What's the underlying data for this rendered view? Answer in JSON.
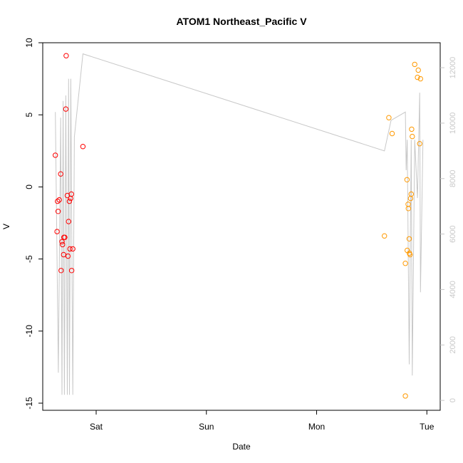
{
  "chart_data": {
    "type": "scatter",
    "title": "ATOM1 Northeast_Pacific V",
    "xlabel": "Date",
    "ylabel": "V",
    "ylim": [
      -15,
      10
    ],
    "xlim": [
      -0.42,
      3.05
    ],
    "x_ticks": [
      {
        "value": 0,
        "label": "Sat"
      },
      {
        "value": 1,
        "label": "Sun"
      },
      {
        "value": 2,
        "label": "Mon"
      },
      {
        "value": 3,
        "label": "Tue"
      }
    ],
    "y_ticks": [
      {
        "value": 10,
        "label": "10"
      },
      {
        "value": 5,
        "label": "5"
      },
      {
        "value": 0,
        "label": "0"
      },
      {
        "value": -5,
        "label": "-5"
      },
      {
        "value": -10,
        "label": "-10"
      },
      {
        "value": -15,
        "label": "-15"
      }
    ],
    "y2lim": [
      -100,
      12900
    ],
    "y2_ticks": [
      {
        "value": 0,
        "label": "0"
      },
      {
        "value": 2000,
        "label": "2000"
      },
      {
        "value": 4000,
        "label": "4000"
      },
      {
        "value": 6000,
        "label": "6000"
      },
      {
        "value": 8000,
        "label": "8000"
      },
      {
        "value": 10000,
        "label": "10000"
      },
      {
        "value": 12000,
        "label": "12000"
      }
    ],
    "grid": false,
    "colors": {
      "series_red": "#ff0000",
      "series_orange": "#ff9900",
      "line": "#c8c8c8",
      "right_axis": "#c8c8c8"
    },
    "series": [
      {
        "marker": "circle",
        "color": "#ff0000",
        "points": [
          {
            "x": -0.37,
            "y": 2.2
          },
          {
            "x": -0.355,
            "y": -3.1
          },
          {
            "x": -0.35,
            "y": -1.0
          },
          {
            "x": -0.345,
            "y": -1.7
          },
          {
            "x": -0.335,
            "y": -0.9
          },
          {
            "x": -0.322,
            "y": 0.9
          },
          {
            "x": -0.318,
            "y": -5.8
          },
          {
            "x": -0.31,
            "y": -3.8
          },
          {
            "x": -0.305,
            "y": -4.0
          },
          {
            "x": -0.295,
            "y": -4.7
          },
          {
            "x": -0.292,
            "y": -3.5
          },
          {
            "x": -0.285,
            "y": -3.5
          },
          {
            "x": -0.275,
            "y": 5.4
          },
          {
            "x": -0.272,
            "y": 9.1
          },
          {
            "x": -0.262,
            "y": -0.6
          },
          {
            "x": -0.255,
            "y": -4.8
          },
          {
            "x": -0.25,
            "y": -2.4
          },
          {
            "x": -0.243,
            "y": -1.0
          },
          {
            "x": -0.238,
            "y": -4.3
          },
          {
            "x": -0.232,
            "y": -0.8
          },
          {
            "x": -0.225,
            "y": -0.5
          },
          {
            "x": -0.222,
            "y": -5.8
          },
          {
            "x": -0.212,
            "y": -4.3
          },
          {
            "x": -0.12,
            "y": 2.8
          }
        ]
      },
      {
        "marker": "circle",
        "color": "#ff9900",
        "points": [
          {
            "x": 2.615,
            "y": -3.4
          },
          {
            "x": 2.655,
            "y": 4.8
          },
          {
            "x": 2.685,
            "y": 3.7
          },
          {
            "x": 2.805,
            "y": -14.5
          },
          {
            "x": 2.805,
            "y": -5.3
          },
          {
            "x": 2.82,
            "y": 0.5
          },
          {
            "x": 2.822,
            "y": -4.4
          },
          {
            "x": 2.83,
            "y": -1.2
          },
          {
            "x": 2.832,
            "y": -1.5
          },
          {
            "x": 2.84,
            "y": -3.6
          },
          {
            "x": 2.842,
            "y": -4.6
          },
          {
            "x": 2.848,
            "y": -4.7
          },
          {
            "x": 2.852,
            "y": -0.8
          },
          {
            "x": 2.858,
            "y": -0.5
          },
          {
            "x": 2.862,
            "y": 4.0
          },
          {
            "x": 2.868,
            "y": 3.5
          },
          {
            "x": 2.89,
            "y": 8.5
          },
          {
            "x": 2.915,
            "y": 7.6
          },
          {
            "x": 2.922,
            "y": 8.1
          },
          {
            "x": 2.935,
            "y": 3.0
          },
          {
            "x": 2.942,
            "y": 7.5
          }
        ]
      }
    ],
    "line_series": {
      "axis": "right",
      "color": "#c8c8c8",
      "points": [
        {
          "x": -0.37,
          "y": 10400
        },
        {
          "x": -0.343,
          "y": 1000
        },
        {
          "x": -0.322,
          "y": 10200
        },
        {
          "x": -0.31,
          "y": 200
        },
        {
          "x": -0.3,
          "y": 10800
        },
        {
          "x": -0.288,
          "y": 200
        },
        {
          "x": -0.275,
          "y": 11000
        },
        {
          "x": -0.262,
          "y": 200
        },
        {
          "x": -0.25,
          "y": 11600
        },
        {
          "x": -0.242,
          "y": 200
        },
        {
          "x": -0.23,
          "y": 11600
        },
        {
          "x": -0.212,
          "y": 200
        },
        {
          "x": -0.198,
          "y": 9500
        },
        {
          "x": -0.12,
          "y": 12500
        },
        {
          "x": 2.615,
          "y": 9000
        },
        {
          "x": 2.675,
          "y": 10100
        },
        {
          "x": 2.805,
          "y": 10400
        },
        {
          "x": 2.812,
          "y": 8300
        },
        {
          "x": 2.822,
          "y": 9400
        },
        {
          "x": 2.84,
          "y": 1300
        },
        {
          "x": 2.858,
          "y": 9400
        },
        {
          "x": 2.868,
          "y": 900
        },
        {
          "x": 2.89,
          "y": 9400
        },
        {
          "x": 2.915,
          "y": 7300
        },
        {
          "x": 2.935,
          "y": 11100
        },
        {
          "x": 2.942,
          "y": 3900
        },
        {
          "x": 2.965,
          "y": 9400
        }
      ]
    }
  }
}
